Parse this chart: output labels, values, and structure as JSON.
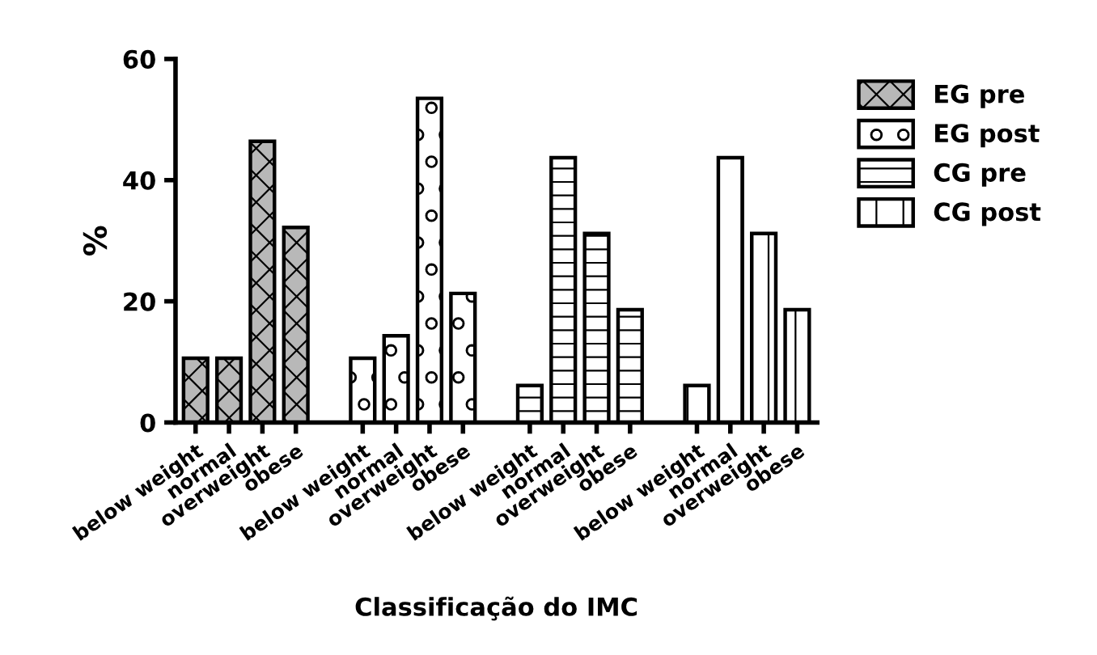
{
  "chart_data": {
    "type": "bar",
    "xlabel": "Classificação do IMC",
    "ylabel": "%",
    "categories": [
      "below weight",
      "normal",
      "overweight",
      "obese",
      null,
      "below weight",
      "normal",
      "overweight",
      "obese",
      null,
      "below weight",
      "normal",
      "overweight",
      "obese",
      null,
      "below weight",
      "normal",
      "overweight",
      "obese"
    ],
    "series": [
      {
        "name": "EG pre",
        "color": "#000000",
        "values": [
          10.6,
          10.6,
          46.4,
          32.2,
          null,
          null,
          null,
          null,
          null,
          null,
          null,
          null,
          null,
          null,
          null,
          null,
          null,
          null,
          null
        ]
      },
      {
        "name": "EG post",
        "color": "#000000",
        "values": [
          null,
          null,
          null,
          null,
          null,
          10.6,
          14.3,
          53.5,
          21.3,
          null,
          null,
          null,
          null,
          null,
          null,
          null,
          null,
          null,
          null
        ]
      },
      {
        "name": "CG pre",
        "color": "#000000",
        "values": [
          null,
          null,
          null,
          null,
          null,
          null,
          null,
          null,
          null,
          null,
          6.1,
          43.7,
          31.2,
          18.6,
          null,
          null,
          null,
          null,
          null
        ]
      },
      {
        "name": "CG post",
        "color": "#000000",
        "values": [
          null,
          null,
          null,
          null,
          null,
          null,
          null,
          null,
          null,
          null,
          null,
          null,
          null,
          null,
          null,
          6.1,
          43.7,
          31.2,
          18.6
        ]
      }
    ],
    "ylim": [
      0,
      60
    ],
    "yticks": [
      0,
      20,
      40,
      60
    ],
    "grid": false,
    "legend": "top right"
  }
}
